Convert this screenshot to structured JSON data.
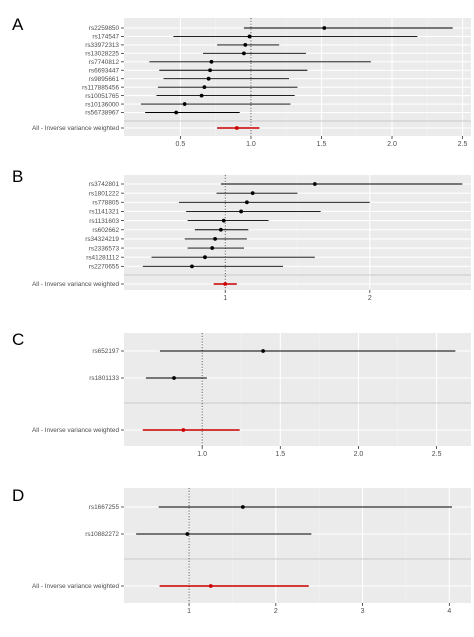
{
  "chart_data": [
    {
      "type": "forest",
      "panel_label": "A",
      "null_line": 1,
      "grid": true,
      "xlim": [
        0.1,
        2.56
      ],
      "xticks": [
        0.5,
        1.0,
        1.5,
        2.0,
        2.5
      ],
      "xtick_labels": [
        "0.5",
        "1.0",
        "1.5",
        "2.0",
        "2.5"
      ],
      "snps": [
        {
          "name": "rs2259850",
          "or": 1.52,
          "lo": 0.95,
          "hi": 2.43
        },
        {
          "name": "rs174547",
          "or": 0.99,
          "lo": 0.45,
          "hi": 2.18
        },
        {
          "name": "rs33972313",
          "or": 0.96,
          "lo": 0.76,
          "hi": 1.2
        },
        {
          "name": "rs13028225",
          "or": 0.95,
          "lo": 0.66,
          "hi": 1.39
        },
        {
          "name": "rs7740812",
          "or": 0.72,
          "lo": 0.28,
          "hi": 1.85
        },
        {
          "name": "rs6693447",
          "or": 0.71,
          "lo": 0.35,
          "hi": 1.4
        },
        {
          "name": "rs9895661",
          "or": 0.7,
          "lo": 0.38,
          "hi": 1.27
        },
        {
          "name": "rs117885456",
          "or": 0.67,
          "lo": 0.34,
          "hi": 1.33
        },
        {
          "name": "rs10051765",
          "or": 0.65,
          "lo": 0.33,
          "hi": 1.31
        },
        {
          "name": "rs10136000",
          "or": 0.53,
          "lo": 0.22,
          "hi": 1.28
        },
        {
          "name": "rs56738967",
          "or": 0.47,
          "lo": 0.25,
          "hi": 0.92
        }
      ],
      "pooled": {
        "name": "All - Inverse variance weighted",
        "or": 0.9,
        "lo": 0.76,
        "hi": 1.06
      }
    },
    {
      "type": "forest",
      "panel_label": "B",
      "null_line": 1,
      "grid": true,
      "xlim": [
        0.3,
        2.7
      ],
      "xticks": [
        1,
        2
      ],
      "xtick_labels": [
        "1",
        "2"
      ],
      "snps": [
        {
          "name": "rs3742801",
          "or": 1.62,
          "lo": 0.97,
          "hi": 2.64
        },
        {
          "name": "rs1801222",
          "or": 1.19,
          "lo": 0.94,
          "hi": 1.5
        },
        {
          "name": "rs778805",
          "or": 1.15,
          "lo": 0.68,
          "hi": 2.0
        },
        {
          "name": "rs1141321",
          "or": 1.11,
          "lo": 0.73,
          "hi": 1.66
        },
        {
          "name": "rs1131603",
          "or": 0.99,
          "lo": 0.74,
          "hi": 1.3
        },
        {
          "name": "rs602662",
          "or": 0.97,
          "lo": 0.79,
          "hi": 1.16
        },
        {
          "name": "rs34324219",
          "or": 0.93,
          "lo": 0.72,
          "hi": 1.15
        },
        {
          "name": "rs2336573",
          "or": 0.91,
          "lo": 0.74,
          "hi": 1.13
        },
        {
          "name": "rs41281112",
          "or": 0.86,
          "lo": 0.49,
          "hi": 1.62
        },
        {
          "name": "rs2270655",
          "or": 0.77,
          "lo": 0.43,
          "hi": 1.4
        }
      ],
      "pooled": {
        "name": "All - Inverse variance weighted",
        "or": 1.0,
        "lo": 0.92,
        "hi": 1.08
      }
    },
    {
      "type": "forest",
      "panel_label": "C",
      "null_line": 1,
      "grid": true,
      "xlim": [
        0.5,
        2.72
      ],
      "xticks": [
        1.0,
        1.5,
        2.0,
        2.5
      ],
      "xtick_labels": [
        "1.0",
        "1.5",
        "2.0",
        "2.5"
      ],
      "snps": [
        {
          "name": "rs652197",
          "or": 1.39,
          "lo": 0.73,
          "hi": 2.62
        },
        {
          "name": "rs1801133",
          "or": 0.82,
          "lo": 0.64,
          "hi": 1.03
        }
      ],
      "pooled": {
        "name": "All - Inverse variance weighted",
        "or": 0.88,
        "lo": 0.62,
        "hi": 1.24
      }
    },
    {
      "type": "forest",
      "panel_label": "D",
      "null_line": 1,
      "grid": true,
      "xlim": [
        0.25,
        4.25
      ],
      "xticks": [
        1,
        2,
        3,
        4
      ],
      "xtick_labels": [
        "1",
        "2",
        "3",
        "4"
      ],
      "snps": [
        {
          "name": "rs1667255",
          "or": 1.62,
          "lo": 0.65,
          "hi": 4.03
        },
        {
          "name": "rs10882272",
          "or": 0.98,
          "lo": 0.39,
          "hi": 2.41
        }
      ],
      "pooled": {
        "name": "All - Inverse variance weighted",
        "or": 1.25,
        "lo": 0.66,
        "hi": 2.38
      }
    }
  ],
  "colors": {
    "panel_bg": "#ebebeb",
    "grid_major": "#ffffff",
    "grid_minor": "#f3f3f3",
    "snp_point": "#000000",
    "pooled": "#cc0000",
    "separator": "#bdbdbd",
    "null_line": "#333333"
  }
}
